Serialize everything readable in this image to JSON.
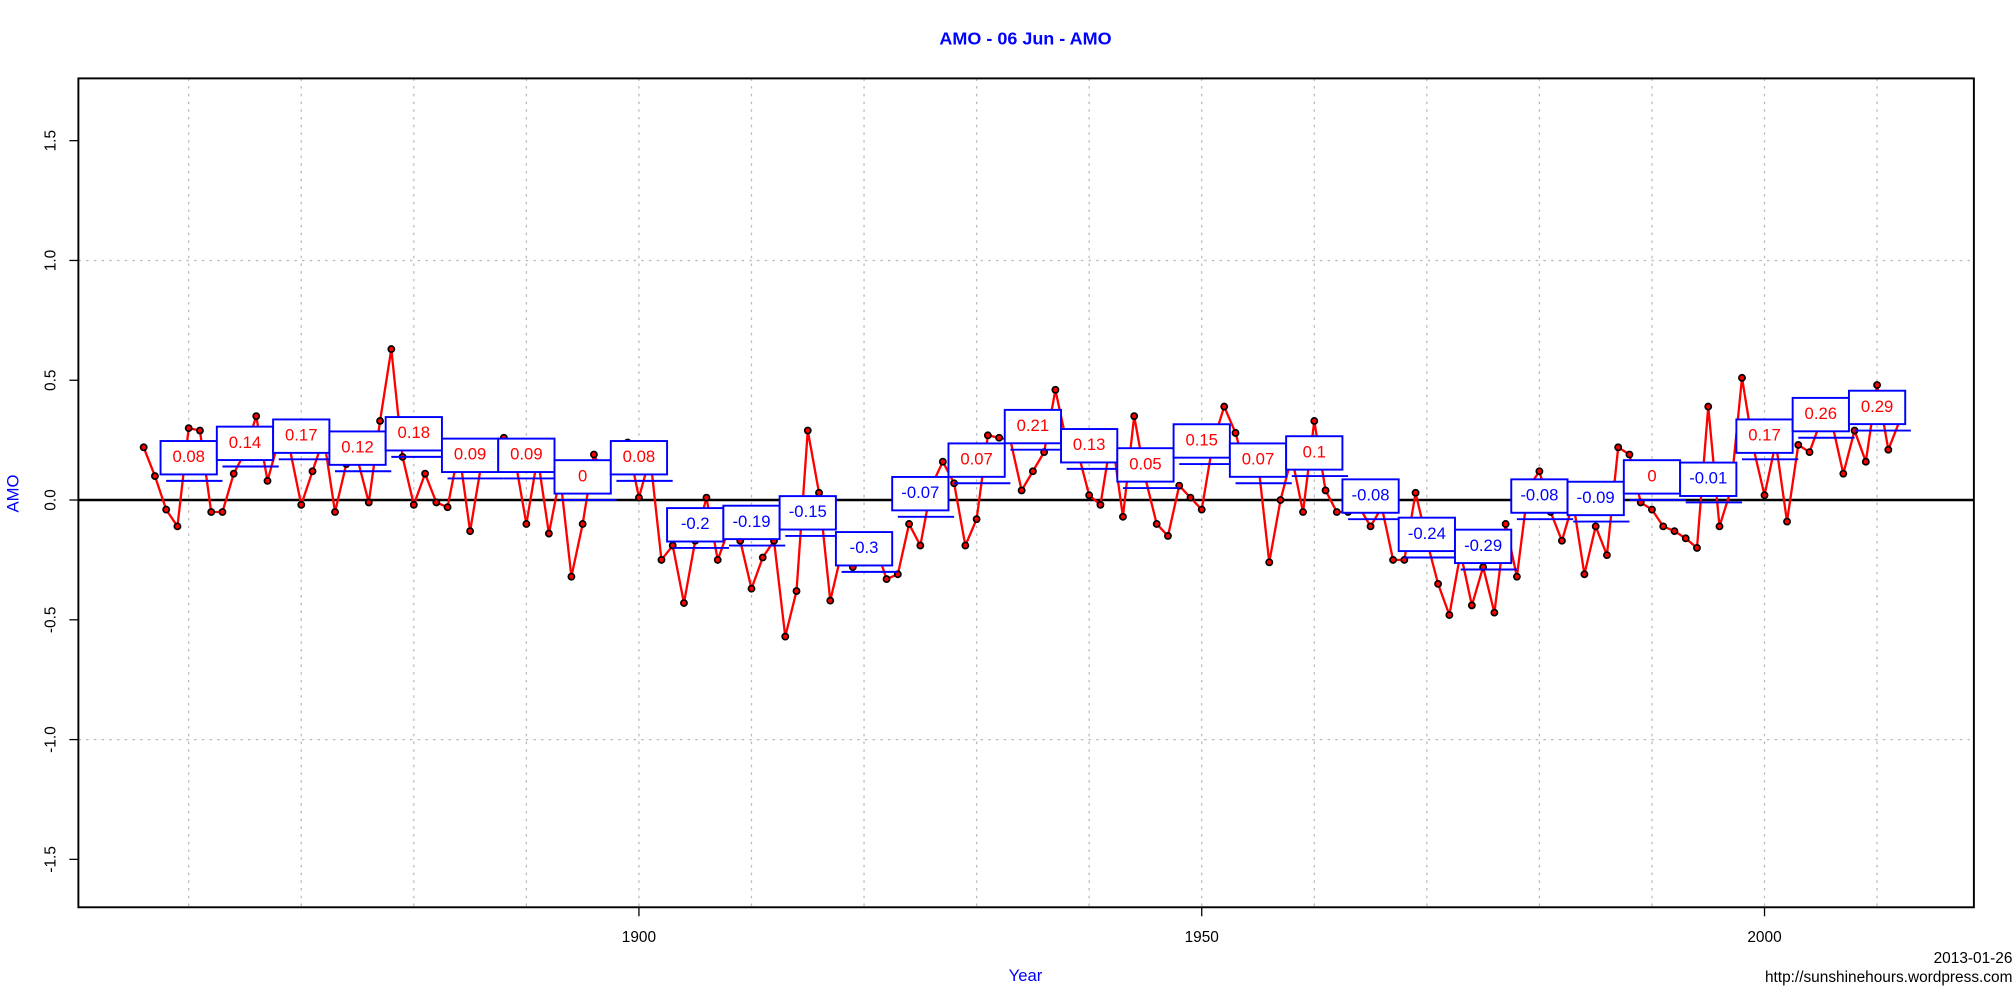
{
  "chart_data": {
    "type": "line",
    "title": "AMO - 06 Jun - AMO",
    "x_label": "Year",
    "y_label": "AMO",
    "date_note": "2013-01-26",
    "source": "http://sunshinehours.wordpress.com",
    "title_color": "#0000ff",
    "color": "#ff0000",
    "point_color": "#000000",
    "mean_color": "#0000ff",
    "positive_label_color": "#ff0000",
    "negative_label_color": "#0000ff",
    "xlim": [
      1850.2,
      2018.6
    ],
    "ylim": [
      -1.7,
      1.76
    ],
    "xticks": [
      1900,
      1950,
      2000
    ],
    "yticks": [
      -1.5,
      {
        "value": -1,
        "label": "-1.0"
      },
      -0.5,
      {
        "value": 0,
        "label": "0.0"
      },
      0.5,
      {
        "value": 1,
        "label": "1.0"
      },
      1.5
    ],
    "xgrid": [
      1860,
      1870,
      1880,
      1890,
      1900,
      1910,
      1920,
      1930,
      1940,
      1950,
      1960,
      1970,
      1980,
      1990,
      2000,
      2010
    ],
    "ygrid": [
      -1,
      1
    ],
    "zero_line": 0,
    "x": [
      1856,
      1857,
      1858,
      1859,
      1860,
      1861,
      1862,
      1863,
      1864,
      1865,
      1866,
      1867,
      1868,
      1869,
      1870,
      1871,
      1872,
      1873,
      1874,
      1875,
      1876,
      1877,
      1878,
      1879,
      1880,
      1881,
      1882,
      1883,
      1884,
      1885,
      1886,
      1887,
      1888,
      1889,
      1890,
      1891,
      1892,
      1893,
      1894,
      1895,
      1896,
      1897,
      1898,
      1899,
      1900,
      1901,
      1902,
      1903,
      1904,
      1905,
      1906,
      1907,
      1908,
      1909,
      1910,
      1911,
      1912,
      1913,
      1914,
      1915,
      1916,
      1917,
      1918,
      1919,
      1920,
      1921,
      1922,
      1923,
      1924,
      1925,
      1926,
      1927,
      1928,
      1929,
      1930,
      1931,
      1932,
      1933,
      1934,
      1935,
      1936,
      1937,
      1938,
      1939,
      1940,
      1941,
      1942,
      1943,
      1944,
      1945,
      1946,
      1947,
      1948,
      1949,
      1950,
      1951,
      1952,
      1953,
      1954,
      1955,
      1956,
      1957,
      1958,
      1959,
      1960,
      1961,
      1962,
      1963,
      1964,
      1965,
      1966,
      1967,
      1968,
      1969,
      1970,
      1971,
      1972,
      1973,
      1974,
      1975,
      1976,
      1977,
      1978,
      1979,
      1980,
      1981,
      1982,
      1983,
      1984,
      1985,
      1986,
      1987,
      1988,
      1989,
      1990,
      1991,
      1992,
      1993,
      1994,
      1995,
      1996,
      1997,
      1998,
      1999,
      2000,
      2001,
      2002,
      2003,
      2004,
      2005,
      2006,
      2007,
      2008,
      2009,
      2010,
      2011,
      2012
    ],
    "values": [
      0.22,
      0.1,
      -0.04,
      -0.11,
      0.3,
      0.29,
      -0.05,
      -0.05,
      0.11,
      0.2,
      0.35,
      0.08,
      0.25,
      0.21,
      -0.02,
      0.12,
      0.26,
      -0.05,
      0.15,
      0.17,
      -0.01,
      0.33,
      0.63,
      0.18,
      -0.02,
      0.11,
      -0.01,
      -0.03,
      0.21,
      -0.13,
      0.15,
      0.18,
      0.26,
      0.17,
      -0.1,
      0.18,
      -0.14,
      0.1,
      -0.32,
      -0.1,
      0.19,
      0.09,
      0.19,
      0.24,
      0.01,
      0.18,
      -0.25,
      -0.19,
      -0.43,
      -0.17,
      0.01,
      -0.25,
      -0.12,
      -0.17,
      -0.37,
      -0.24,
      -0.17,
      -0.57,
      -0.38,
      0.29,
      0.03,
      -0.42,
      -0.22,
      -0.28,
      -0.26,
      -0.19,
      -0.33,
      -0.31,
      -0.1,
      -0.19,
      0.06,
      0.16,
      0.07,
      -0.19,
      -0.08,
      0.27,
      0.26,
      0.25,
      0.04,
      0.12,
      0.2,
      0.46,
      0.24,
      0.2,
      0.02,
      -0.02,
      0.27,
      -0.07,
      0.35,
      0.09,
      -0.1,
      -0.15,
      0.06,
      0.01,
      -0.04,
      0.24,
      0.39,
      0.28,
      0.11,
      0.16,
      -0.26,
      0,
      0.18,
      -0.05,
      0.33,
      0.04,
      -0.05,
      -0.05,
      -0.03,
      -0.11,
      -0.03,
      -0.25,
      -0.25,
      0.03,
      -0.17,
      -0.35,
      -0.48,
      -0.22,
      -0.44,
      -0.28,
      -0.47,
      -0.1,
      -0.32,
      0.05,
      0.12,
      -0.05,
      -0.17,
      -0.01,
      -0.31,
      -0.11,
      -0.23,
      0.22,
      0.19,
      -0.01,
      -0.04,
      -0.11,
      -0.13,
      -0.16,
      -0.2,
      0.39,
      -0.11,
      0.04,
      0.51,
      0.22,
      0.02,
      0.24,
      -0.09,
      0.23,
      0.2,
      0.33,
      0.32,
      0.11,
      0.29,
      0.16,
      0.48,
      0.21,
      0.33
    ],
    "period_means": {
      "x": [
        1860,
        1865,
        1870,
        1875,
        1880,
        1885,
        1890,
        1895,
        1900,
        1905,
        1910,
        1915,
        1920,
        1925,
        1930,
        1935,
        1940,
        1945,
        1950,
        1955,
        1960,
        1965,
        1970,
        1975,
        1980,
        1985,
        1990,
        1995,
        2000,
        2005,
        2010
      ],
      "values": [
        0.08,
        0.14,
        0.17,
        0.12,
        0.18,
        0.09,
        0.09,
        0,
        0.08,
        -0.2,
        -0.19,
        -0.15,
        -0.3,
        -0.07,
        0.07,
        0.21,
        0.13,
        0.05,
        0.15,
        0.07,
        0.1,
        -0.08,
        -0.24,
        -0.29,
        -0.08,
        -0.09,
        0,
        -0.01,
        0.17,
        0.26,
        0.29
      ]
    }
  }
}
